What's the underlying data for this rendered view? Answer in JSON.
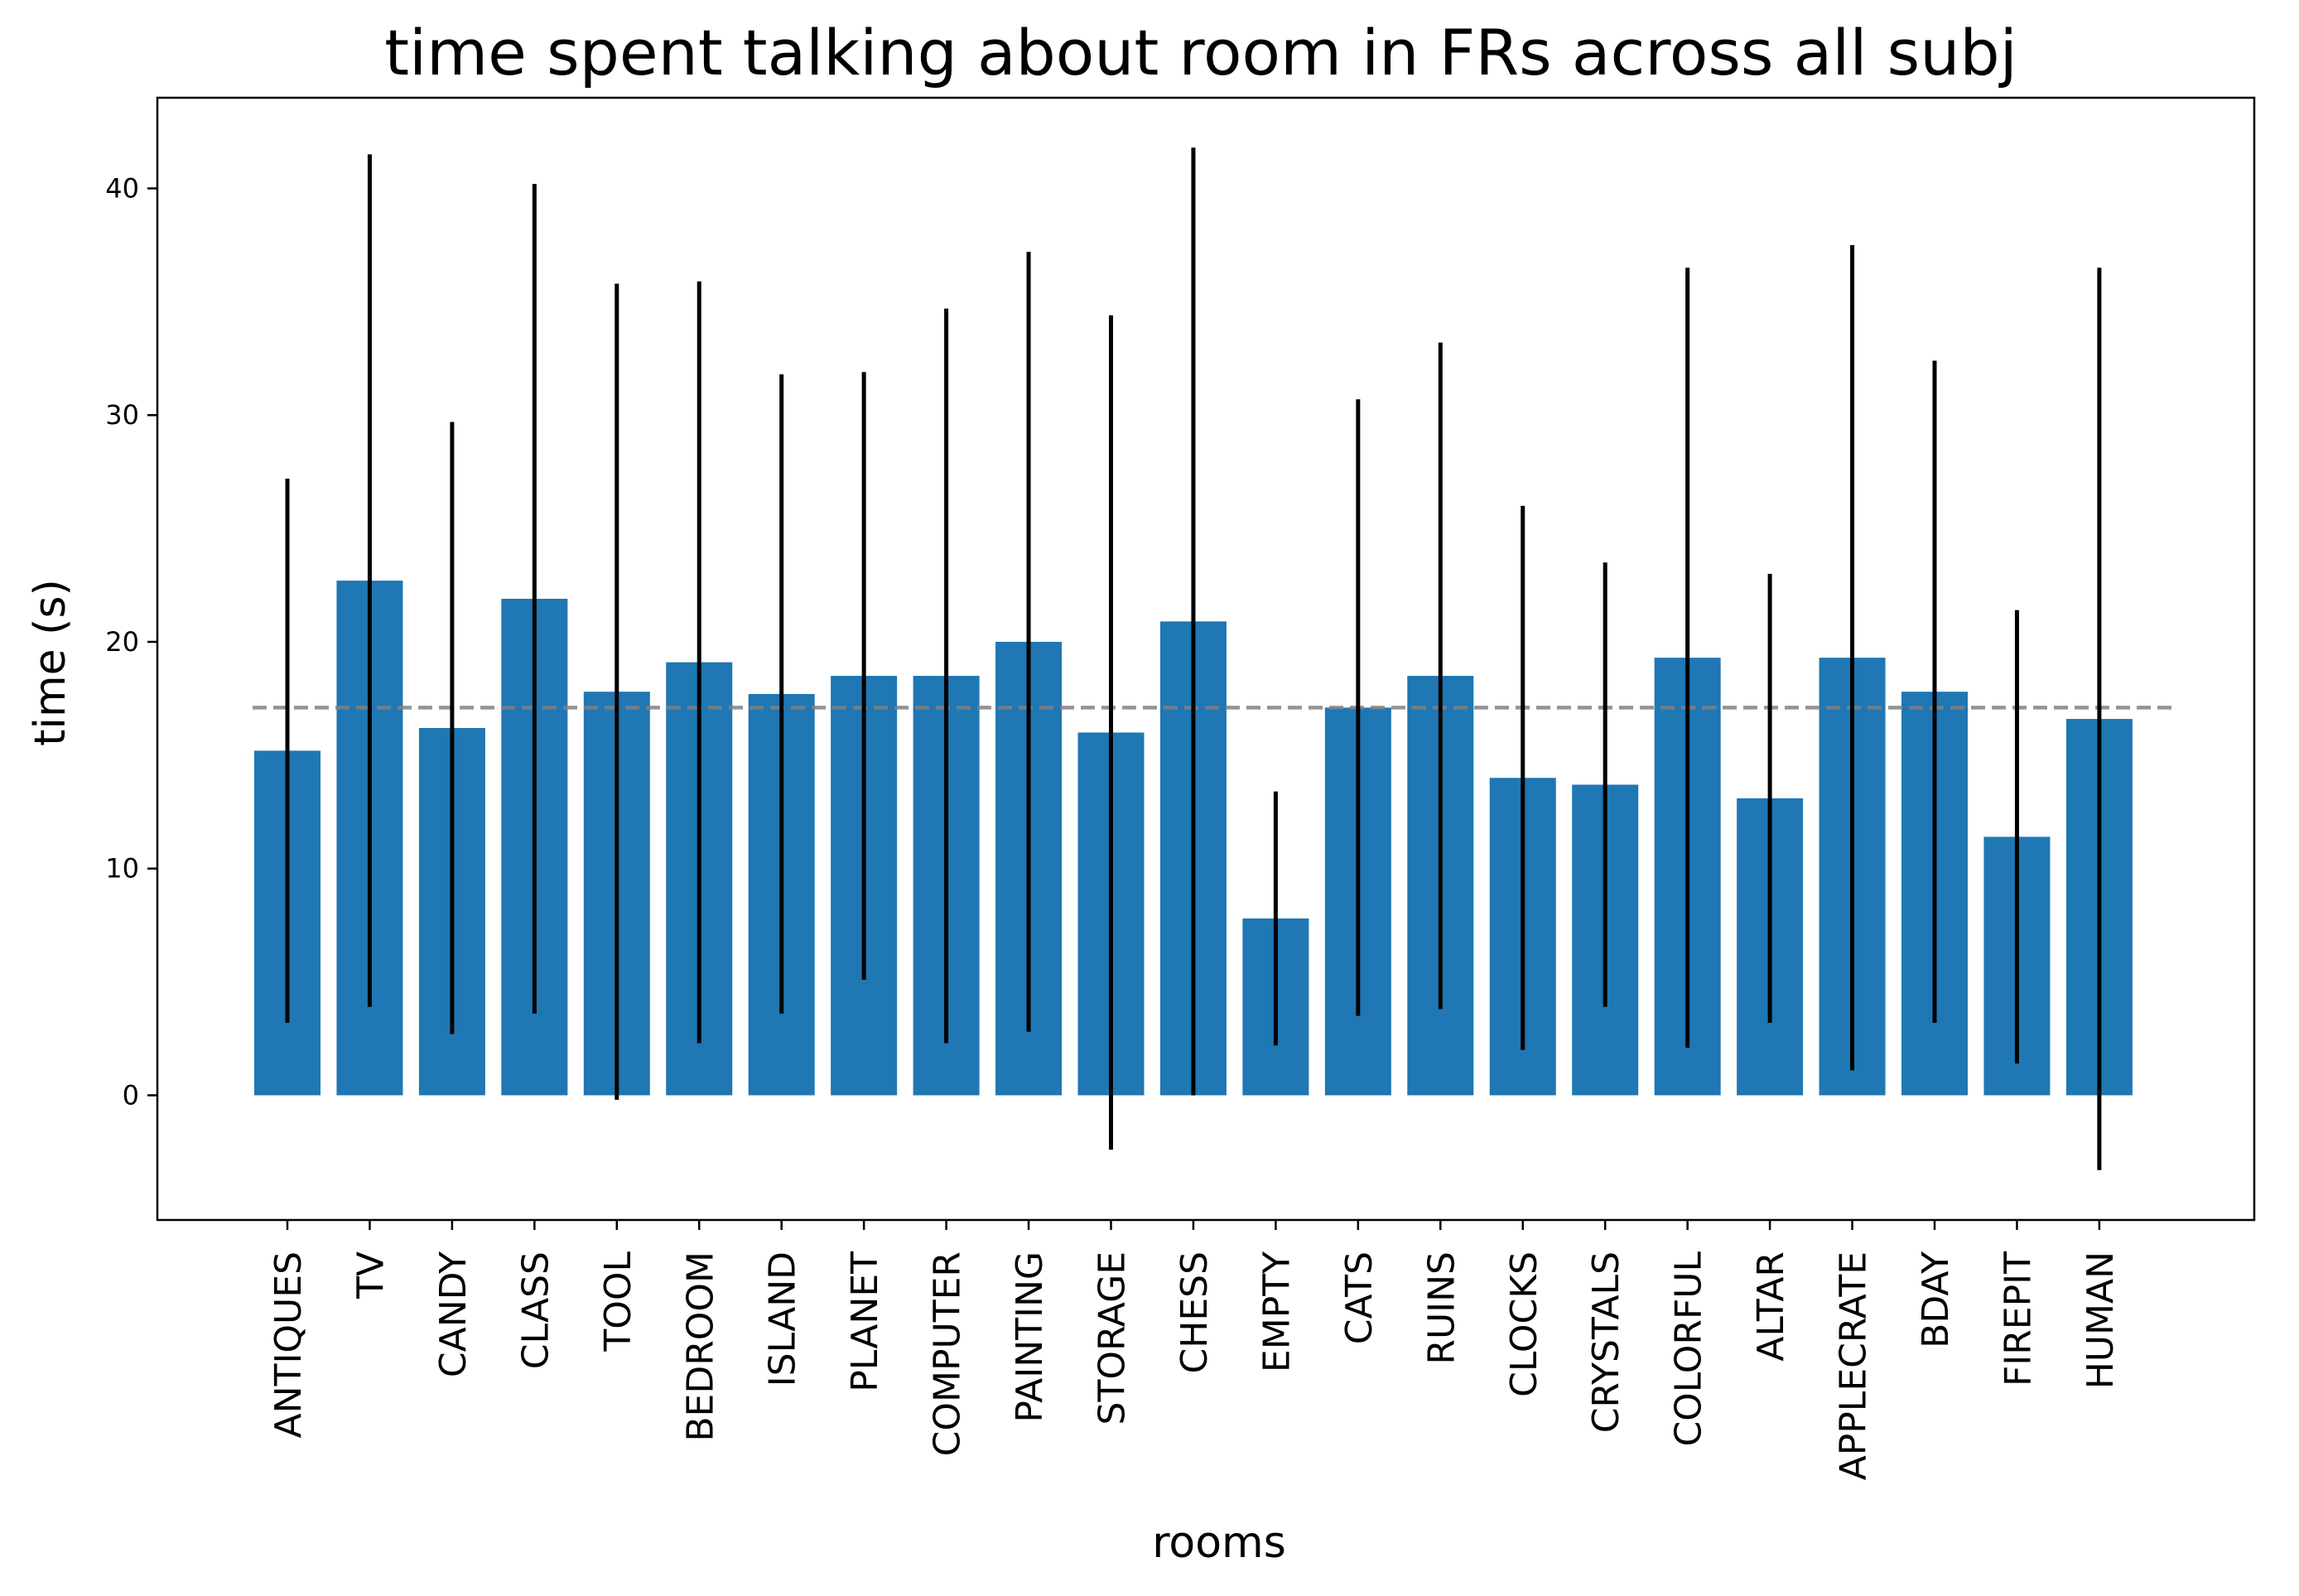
{
  "chart_data": {
    "type": "bar",
    "title": "time spent talking about room in FRs across all subj",
    "xlabel": "rooms",
    "ylabel": "time (s)",
    "ylim": [
      -5.5,
      44
    ],
    "yticks": [
      0,
      10,
      20,
      30,
      40
    ],
    "grid": false,
    "bar_color": "#1f77b4",
    "errorbar_color": "#000000",
    "mean_line_color": "#808080",
    "mean_line_style": "dashed",
    "mean": 17.1,
    "categories": [
      "ANTIQUES",
      "TV",
      "CANDY",
      "CLASS",
      "TOOL",
      "BEDROOM",
      "ISLAND",
      "PLANET",
      "COMPUTER",
      "PAINTING",
      "STORAGE",
      "CHESS",
      "EMPTY",
      "CATS",
      "RUINS",
      "CLOCKS",
      "CRYSTALS",
      "COLORFUL",
      "ALTAR",
      "APPLECRATE",
      "BDAY",
      "FIREPIT",
      "HUMAN"
    ],
    "values": [
      15.2,
      22.7,
      16.2,
      21.9,
      17.8,
      19.1,
      17.7,
      18.5,
      18.5,
      20.0,
      16.0,
      20.9,
      7.8,
      17.1,
      18.5,
      14.0,
      13.7,
      19.3,
      13.1,
      19.3,
      17.8,
      11.4,
      16.6
    ],
    "errors": [
      12.0,
      18.8,
      13.5,
      18.3,
      18.0,
      16.8,
      14.1,
      13.4,
      16.2,
      17.2,
      18.4,
      20.9,
      5.6,
      13.6,
      14.7,
      12.0,
      9.8,
      17.2,
      9.9,
      18.2,
      14.6,
      10.0,
      19.9
    ]
  }
}
